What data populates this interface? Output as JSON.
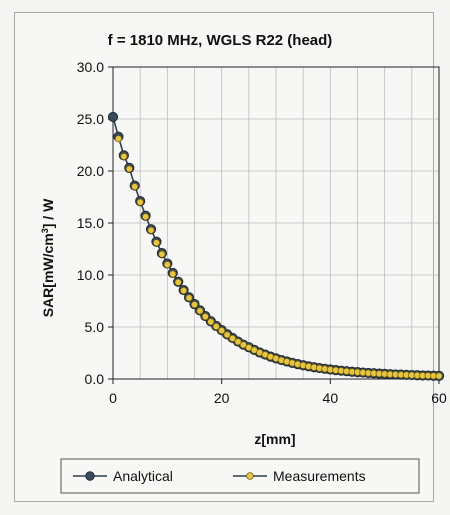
{
  "chart_data": {
    "type": "line",
    "title": "f = 1810 MHz, WGLS R22 (head)",
    "xlabel": "z[mm]",
    "ylabel_main": "SAR[mW/cm",
    "ylabel_sup": "3",
    "ylabel_tail": "] / W",
    "xlim": [
      0,
      60
    ],
    "ylim": [
      0,
      30
    ],
    "xticks": [
      "0",
      "20",
      "40",
      "60"
    ],
    "xtick_values": [
      0,
      20,
      40,
      60
    ],
    "yticks": [
      "0.0",
      "5.0",
      "10.0",
      "15.0",
      "20.0",
      "25.0",
      "30.0"
    ],
    "ytick_values": [
      0,
      5,
      10,
      15,
      20,
      25,
      30
    ],
    "grid_x_step": 5,
    "grid_y_step": 5,
    "legend_position": "bottom",
    "series": [
      {
        "name": "Analytical",
        "color": "#2f3f4f",
        "x": [
          0,
          1,
          2,
          3,
          4,
          5,
          6,
          7,
          8,
          9,
          10,
          11,
          12,
          13,
          14,
          15,
          16,
          17,
          18,
          19,
          20,
          21,
          22,
          23,
          24,
          25,
          26,
          27,
          28,
          29,
          30,
          31,
          32,
          33,
          34,
          35,
          36,
          37,
          38,
          39,
          40,
          41,
          42,
          43,
          44,
          45,
          46,
          47,
          48,
          49,
          50,
          51,
          52,
          53,
          54,
          55,
          56,
          57,
          58,
          59,
          60
        ],
        "values": [
          25.2,
          23.3,
          21.5,
          20.3,
          18.6,
          17.1,
          15.7,
          14.4,
          13.2,
          12.1,
          11.1,
          10.2,
          9.35,
          8.55,
          7.85,
          7.2,
          6.6,
          6.05,
          5.55,
          5.1,
          4.7,
          4.3,
          3.95,
          3.6,
          3.3,
          3.05,
          2.8,
          2.55,
          2.35,
          2.15,
          1.98,
          1.82,
          1.68,
          1.55,
          1.43,
          1.32,
          1.22,
          1.13,
          1.05,
          0.98,
          0.91,
          0.85,
          0.8,
          0.75,
          0.7,
          0.66,
          0.62,
          0.58,
          0.55,
          0.52,
          0.49,
          0.46,
          0.44,
          0.42,
          0.4,
          0.38,
          0.36,
          0.34,
          0.33,
          0.31,
          0.3
        ]
      },
      {
        "name": "Measurements",
        "color": "#d4b020",
        "x": [
          1,
          2,
          3,
          4,
          5,
          6,
          7,
          8,
          9,
          10,
          11,
          12,
          13,
          14,
          15,
          16,
          17,
          18,
          19,
          20,
          21,
          22,
          23,
          24,
          25,
          26,
          27,
          28,
          29,
          30,
          31,
          32,
          33,
          34,
          35,
          36,
          37,
          38,
          39,
          40,
          41,
          42,
          43,
          44,
          45,
          46,
          47,
          48,
          49,
          50,
          51,
          52,
          53,
          54,
          55,
          56,
          57,
          58,
          59,
          60
        ],
        "values": [
          23.1,
          21.4,
          20.2,
          18.5,
          17.0,
          15.6,
          14.3,
          13.1,
          12.0,
          11.0,
          10.1,
          9.3,
          8.5,
          7.8,
          7.15,
          6.55,
          6.0,
          5.5,
          5.05,
          4.65,
          4.25,
          3.9,
          3.58,
          3.28,
          3.02,
          2.78,
          2.54,
          2.34,
          2.14,
          1.97,
          1.81,
          1.67,
          1.54,
          1.42,
          1.31,
          1.21,
          1.12,
          1.04,
          0.97,
          0.9,
          0.84,
          0.79,
          0.74,
          0.69,
          0.65,
          0.61,
          0.57,
          0.54,
          0.51,
          0.48,
          0.45,
          0.43,
          0.41,
          0.39,
          0.37,
          0.35,
          0.33,
          0.32,
          0.3,
          0.29
        ]
      }
    ]
  }
}
